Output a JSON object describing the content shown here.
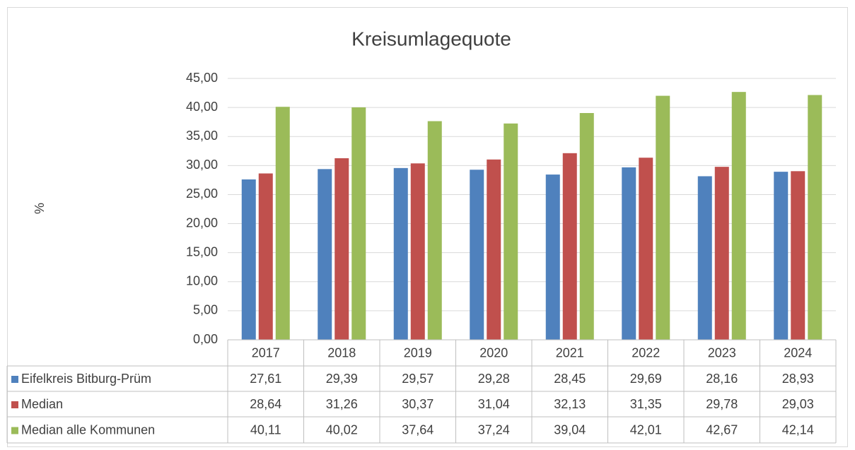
{
  "chart_data": {
    "type": "bar",
    "title": "Kreisumlagequote",
    "y_label": "%",
    "categories": [
      "2017",
      "2018",
      "2019",
      "2020",
      "2021",
      "2022",
      "2023",
      "2024"
    ],
    "series": [
      {
        "name": "Eifelkreis Bitburg-Prüm",
        "color": "#4f81bd",
        "values": [
          27.61,
          29.39,
          29.57,
          29.28,
          28.45,
          29.69,
          28.16,
          28.93
        ],
        "value_labels": [
          "27,61",
          "29,39",
          "29,57",
          "29,28",
          "28,45",
          "29,69",
          "28,16",
          "28,93"
        ]
      },
      {
        "name": "Median",
        "color": "#c0504d",
        "values": [
          28.64,
          31.26,
          30.37,
          31.04,
          32.13,
          31.35,
          29.78,
          29.03
        ],
        "value_labels": [
          "28,64",
          "31,26",
          "30,37",
          "31,04",
          "32,13",
          "31,35",
          "29,78",
          "29,03"
        ]
      },
      {
        "name": "Median alle Kommunen",
        "color": "#9bbb59",
        "values": [
          40.11,
          40.02,
          37.64,
          37.24,
          39.04,
          42.01,
          42.67,
          42.14
        ],
        "value_labels": [
          "40,11",
          "40,02",
          "37,64",
          "37,24",
          "39,04",
          "42,01",
          "42,67",
          "42,14"
        ]
      }
    ],
    "ylim": [
      0,
      45
    ],
    "yticks": [
      {
        "value": 0,
        "label": "0,00"
      },
      {
        "value": 5,
        "label": "5,00"
      },
      {
        "value": 10,
        "label": "10,00"
      },
      {
        "value": 15,
        "label": "15,00"
      },
      {
        "value": 20,
        "label": "20,00"
      },
      {
        "value": 25,
        "label": "25,00"
      },
      {
        "value": 30,
        "label": "30,00"
      },
      {
        "value": 35,
        "label": "35,00"
      },
      {
        "value": 40,
        "label": "40,00"
      },
      {
        "value": 45,
        "label": "45,00"
      }
    ],
    "grid": true
  }
}
